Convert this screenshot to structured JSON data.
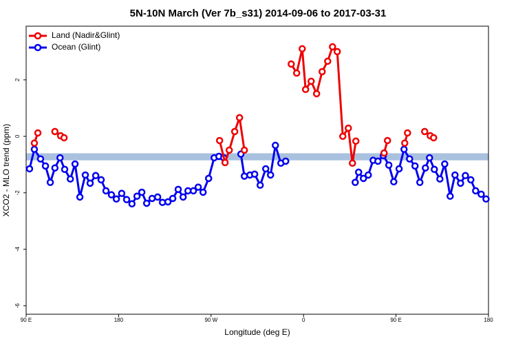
{
  "chart_data": {
    "type": "line",
    "title": "5N-10N March (Ver 7b_s31)   2014-09-06 to 2017-03-31",
    "x_label": "Longitude (deg E)",
    "y_label": "XCO2 - MLO trend (ppm)",
    "xlim": [
      90,
      540
    ],
    "xticks": [
      {
        "value": 90,
        "label": "90 E"
      },
      180,
      {
        "value": 270,
        "label": "90 W"
      },
      {
        "value": 360,
        "label": "0"
      },
      {
        "value": 450,
        "label": "90 E"
      },
      {
        "value": 540,
        "label": "180"
      }
    ],
    "ylim": [
      -6.3,
      3.9
    ],
    "yticks": [
      -6,
      -4,
      -2,
      0,
      2
    ],
    "band": {
      "range": [
        -0.85,
        -0.6
      ],
      "color": "#a9c1de"
    },
    "legend": "top-left",
    "series": [
      {
        "name": "Land (Nadir&Glint)",
        "color": "#ee0000",
        "x": [
          98,
          101.4,
          null,
          118,
          123.5,
          126.9,
          null,
          278.3,
          283.6,
          287.7,
          293,
          297.7,
          302.4,
          null,
          348,
          353.3,
          358.7,
          362,
          367.4,
          372.7,
          378.1,
          383.5,
          388.2,
          392.8,
          398.2,
          403.6,
          407.6,
          410.9,
          null,
          438.4,
          441.7,
          null,
          458.5,
          461.2,
          null,
          477.9,
          483.3,
          486.6
        ],
        "values": [
          -0.24,
          0.12,
          null,
          0.17,
          0.02,
          -0.05,
          null,
          -0.15,
          -0.93,
          -0.49,
          0.17,
          0.66,
          -0.49,
          null,
          2.56,
          2.24,
          3.1,
          1.66,
          1.95,
          1.51,
          2.29,
          2.66,
          3.17,
          3.0,
          0,
          0.29,
          -0.95,
          -0.17,
          null,
          -0.59,
          -0.15,
          null,
          -0.24,
          0.12,
          null,
          0.17,
          0.02,
          -0.05
        ]
      },
      {
        "name": "Ocean (Glint)",
        "color": "#0000ee",
        "x": [
          93.3,
          98,
          104,
          108.8,
          113.5,
          118,
          123,
          127.5,
          133,
          137.6,
          142.3,
          147.6,
          152.3,
          157.7,
          163,
          167.7,
          173,
          177.8,
          183,
          187.8,
          193,
          197.9,
          202.6,
          207.3,
          212.6,
          218,
          222.7,
          228,
          232.7,
          238,
          242.8,
          247.5,
          252.8,
          257.5,
          262.2,
          267.6,
          273,
          277.6,
          282.3,
          null,
          299,
          302.4,
          307.8,
          312.4,
          317.8,
          323.2,
          327.9,
          332.6,
          337.9,
          342.6,
          null,
          410.3,
          413.6,
          418.3,
          423,
          427.7,
          432.4,
          437.7,
          443,
          447.8,
          453,
          457.8,
          463.2,
          468.5,
          473.2,
          478.6,
          482.6,
          487.3,
          492.7,
          497.4,
          502.7,
          507.4,
          512.8,
          517.5,
          522.8,
          527.5,
          532.9,
          537.6
        ],
        "values": [
          -1.15,
          -0.46,
          -0.8,
          -1.05,
          -1.63,
          -1.12,
          -0.76,
          -1.17,
          -1.51,
          -0.98,
          -2.15,
          -1.37,
          -1.66,
          -1.39,
          -1.54,
          -1.93,
          -2.07,
          -2.22,
          -2.02,
          -2.24,
          -2.39,
          -2.12,
          -1.98,
          -2.37,
          -2.2,
          -2.15,
          -2.34,
          -2.32,
          -2.2,
          -1.88,
          -2.15,
          -1.93,
          -1.93,
          -1.8,
          -1.98,
          -1.49,
          -0.76,
          -0.71,
          -0.76,
          null,
          -0.63,
          -1.41,
          -1.37,
          -1.34,
          -1.73,
          -1.15,
          -1.37,
          -0.32,
          -0.95,
          -0.88,
          null,
          -1.63,
          -1.27,
          -1.49,
          -1.37,
          -0.85,
          -0.88,
          -0.68,
          -1.02,
          -1.61,
          -1.15,
          -0.46,
          -0.8,
          -1.05,
          -1.63,
          -1.12,
          -0.76,
          -1.17,
          -1.51,
          -0.98,
          -2.12,
          -1.37,
          -1.66,
          -1.39,
          -1.54,
          -1.93,
          -2.05,
          -2.22
        ]
      }
    ]
  }
}
